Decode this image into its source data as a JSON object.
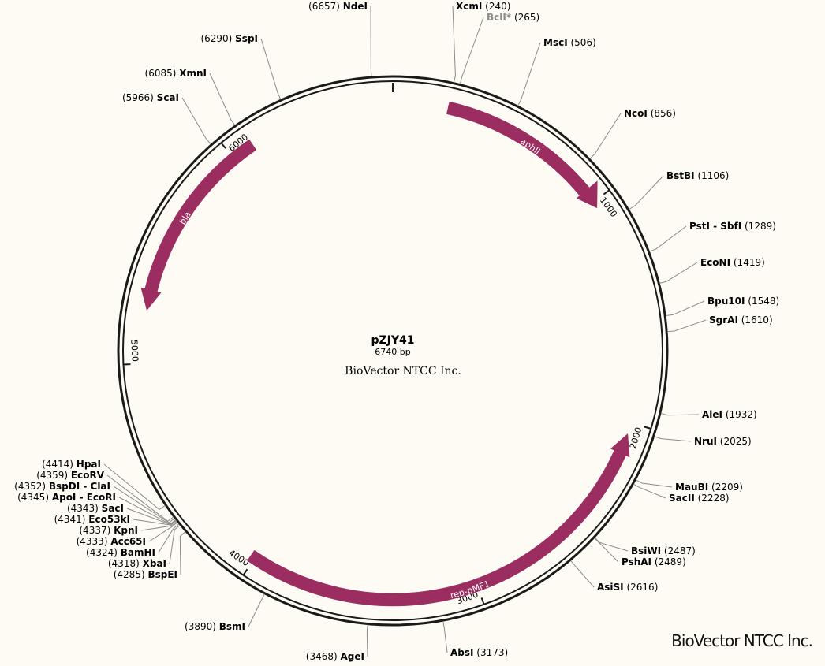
{
  "plasmid": {
    "name": "pZJY41",
    "length_label": "6740 bp",
    "length_bp": 6740,
    "organization": "BioVector NTCC Inc."
  },
  "watermark": "BioVector NTCC Inc.",
  "colors": {
    "feature": "#9b2d60",
    "backbone": "#1a1a1a",
    "leader_line": "#8a8a8a",
    "dim_label": "#8a8a8a"
  },
  "ticks": [
    {
      "bp": 0,
      "label": ""
    },
    {
      "bp": 1000,
      "label": "1000"
    },
    {
      "bp": 2000,
      "label": "2000"
    },
    {
      "bp": 3000,
      "label": "3000"
    },
    {
      "bp": 4000,
      "label": "4000"
    },
    {
      "bp": 5000,
      "label": "5000"
    },
    {
      "bp": 6000,
      "label": "6000"
    }
  ],
  "features": [
    {
      "name": "aphII",
      "start": 240,
      "end": 1030,
      "direction": "forward"
    },
    {
      "name": "rep-pMF1",
      "start": 2050,
      "end": 4020,
      "direction": "reverse"
    },
    {
      "name": "bla",
      "start": 5230,
      "end": 6100,
      "direction": "reverse"
    }
  ],
  "restriction_sites": [
    {
      "name": "NdeI",
      "position": "(6657)",
      "bp": 6657,
      "dim": false
    },
    {
      "name": "XcmI",
      "position": "(240)",
      "bp": 240,
      "dim": false
    },
    {
      "name": "BclI*",
      "position": "(265)",
      "bp": 265,
      "dim": true
    },
    {
      "name": "MscI",
      "position": "(506)",
      "bp": 506,
      "dim": false
    },
    {
      "name": "NcoI",
      "position": "(856)",
      "bp": 856,
      "dim": false
    },
    {
      "name": "BstBI",
      "position": "(1106)",
      "bp": 1106,
      "dim": false
    },
    {
      "name": "PstI - SbfI",
      "position": "(1289)",
      "bp": 1289,
      "dim": false
    },
    {
      "name": "EcoNI",
      "position": "(1419)",
      "bp": 1419,
      "dim": false
    },
    {
      "name": "Bpu10I",
      "position": "(1548)",
      "bp": 1548,
      "dim": false
    },
    {
      "name": "SgrAI",
      "position": "(1610)",
      "bp": 1610,
      "dim": false
    },
    {
      "name": "AleI",
      "position": "(1932)",
      "bp": 1932,
      "dim": false
    },
    {
      "name": "NruI",
      "position": "(2025)",
      "bp": 2025,
      "dim": false
    },
    {
      "name": "MauBI",
      "position": "(2209)",
      "bp": 2209,
      "dim": false
    },
    {
      "name": "SacII",
      "position": "(2228)",
      "bp": 2228,
      "dim": false
    },
    {
      "name": "BsiWI",
      "position": "(2487)",
      "bp": 2487,
      "dim": false
    },
    {
      "name": "PshAI",
      "position": "(2489)",
      "bp": 2489,
      "dim": false
    },
    {
      "name": "AsiSI",
      "position": "(2616)",
      "bp": 2616,
      "dim": false
    },
    {
      "name": "AbsI",
      "position": "(3173)",
      "bp": 3173,
      "dim": false
    },
    {
      "name": "AgeI",
      "position": "(3468)",
      "bp": 3468,
      "dim": false
    },
    {
      "name": "BsmI",
      "position": "(3890)",
      "bp": 3890,
      "dim": false
    },
    {
      "name": "BspEI",
      "position": "(4285)",
      "bp": 4285,
      "dim": false
    },
    {
      "name": "XbaI",
      "position": "(4318)",
      "bp": 4318,
      "dim": false
    },
    {
      "name": "BamHI",
      "position": "(4324)",
      "bp": 4324,
      "dim": false
    },
    {
      "name": "Acc65I",
      "position": "(4333)",
      "bp": 4333,
      "dim": false
    },
    {
      "name": "KpnI",
      "position": "(4337)",
      "bp": 4337,
      "dim": false
    },
    {
      "name": "Eco53kI",
      "position": "(4341)",
      "bp": 4341,
      "dim": false
    },
    {
      "name": "SacI",
      "position": "(4343)",
      "bp": 4343,
      "dim": false
    },
    {
      "name": "ApoI - EcoRI",
      "position": "(4345)",
      "bp": 4345,
      "dim": false
    },
    {
      "name": "BspDI - ClaI",
      "position": "(4352)",
      "bp": 4352,
      "dim": false
    },
    {
      "name": "EcoRV",
      "position": "(4359)",
      "bp": 4359,
      "dim": false
    },
    {
      "name": "HpaI",
      "position": "(4414)",
      "bp": 4414,
      "dim": false
    },
    {
      "name": "ScaI",
      "position": "(5966)",
      "bp": 5966,
      "dim": false
    },
    {
      "name": "XmnI",
      "position": "(6085)",
      "bp": 6085,
      "dim": false
    },
    {
      "name": "SspI",
      "position": "(6290)",
      "bp": 6290,
      "dim": false
    }
  ]
}
